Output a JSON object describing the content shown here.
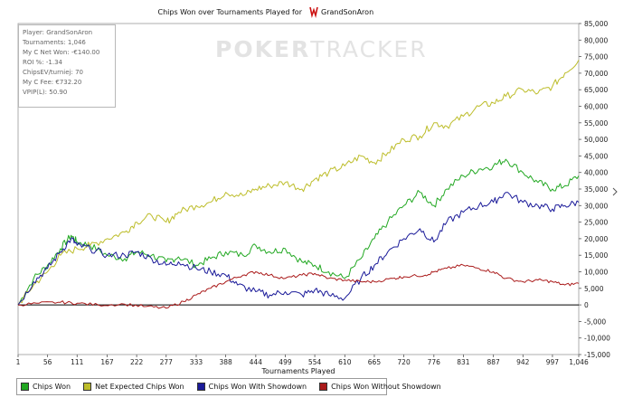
{
  "chart_data": {
    "type": "line",
    "title": "Chips Won over Tournaments Played for",
    "player_name": "GrandSonAron",
    "xlabel": "Tournaments Played",
    "ylabel": "",
    "x_ticks": [
      "1",
      "56",
      "111",
      "167",
      "222",
      "277",
      "333",
      "388",
      "444",
      "499",
      "554",
      "610",
      "665",
      "720",
      "776",
      "831",
      "887",
      "942",
      "997",
      "1,046"
    ],
    "y_ticks": [
      "85,000",
      "80,000",
      "75,000",
      "70,000",
      "65,000",
      "60,000",
      "55,000",
      "50,000",
      "45,000",
      "40,000",
      "35,000",
      "30,000",
      "25,000",
      "20,000",
      "15,000",
      "10,000",
      "5,000",
      "0",
      "-5,000",
      "-10,000",
      "-15,000"
    ],
    "xlim": [
      1,
      1046
    ],
    "ylim": [
      -15000,
      85000
    ],
    "legend_position": "bottom-left",
    "stats_box": [
      "Player: GrandSonAron",
      "Tournaments: 1,046",
      "My C Net Won: -€140.00",
      "ROI %: -1.34",
      "ChipsEV/turniej: 70",
      "My C Fee: €732.20",
      "VPIP(L): 50.90"
    ],
    "watermark": {
      "part1": "POKER",
      "part2": "TRACKER"
    },
    "series": [
      {
        "name": "Chips Won",
        "color": "#22a822",
        "x": [
          1,
          30,
          56,
          80,
          100,
          111,
          135,
          167,
          200,
          222,
          250,
          277,
          300,
          333,
          360,
          388,
          420,
          444,
          470,
          499,
          530,
          554,
          580,
          610,
          640,
          665,
          690,
          720,
          750,
          776,
          800,
          831,
          860,
          887,
          910,
          942,
          970,
          997,
          1020,
          1046
        ],
        "y": [
          0,
          8000,
          12000,
          17000,
          21000,
          19000,
          18000,
          15000,
          14000,
          16000,
          15000,
          13000,
          14500,
          12000,
          14000,
          16000,
          15000,
          18000,
          16000,
          17000,
          13000,
          12000,
          10000,
          8000,
          14000,
          20000,
          25000,
          30000,
          34000,
          30000,
          35000,
          39000,
          41000,
          42000,
          44000,
          40000,
          37000,
          35000,
          36000,
          39000
        ]
      },
      {
        "name": "Net Expected Chips Won",
        "color": "#bdbd2a",
        "x": [
          1,
          30,
          56,
          80,
          111,
          135,
          167,
          200,
          222,
          250,
          277,
          300,
          333,
          360,
          388,
          420,
          444,
          470,
          499,
          530,
          554,
          580,
          610,
          640,
          665,
          690,
          720,
          750,
          776,
          800,
          831,
          860,
          887,
          910,
          942,
          970,
          997,
          1020,
          1046
        ],
        "y": [
          0,
          6000,
          10000,
          15000,
          17000,
          18000,
          20000,
          22000,
          25000,
          27000,
          25000,
          28000,
          30000,
          31000,
          34000,
          33000,
          35000,
          36000,
          37000,
          35000,
          38000,
          40000,
          42000,
          45000,
          43000,
          46000,
          50000,
          51000,
          55000,
          54000,
          57000,
          60000,
          61000,
          63000,
          65000,
          64000,
          66000,
          70000,
          74000
        ]
      },
      {
        "name": "Chips Won With Showdown",
        "color": "#1a1a99",
        "x": [
          1,
          30,
          56,
          80,
          100,
          111,
          135,
          167,
          200,
          222,
          250,
          277,
          300,
          333,
          360,
          388,
          410,
          444,
          470,
          499,
          530,
          554,
          580,
          610,
          640,
          665,
          690,
          720,
          750,
          776,
          800,
          831,
          860,
          887,
          910,
          942,
          970,
          997,
          1020,
          1046
        ],
        "y": [
          0,
          7000,
          11000,
          16000,
          20000,
          18000,
          17000,
          15000,
          15000,
          16000,
          14000,
          12000,
          13000,
          11000,
          10000,
          9000,
          6000,
          4000,
          3000,
          4000,
          3000,
          4500,
          3000,
          2000,
          8000,
          12000,
          16000,
          20000,
          23000,
          19000,
          25000,
          28000,
          30000,
          31000,
          34000,
          31000,
          30000,
          29000,
          30000,
          31000
        ]
      },
      {
        "name": "Chips Won Without Showdown",
        "color": "#aa1a1a",
        "x": [
          1,
          40,
          80,
          111,
          150,
          200,
          240,
          277,
          310,
          333,
          360,
          388,
          420,
          444,
          470,
          499,
          530,
          554,
          580,
          610,
          640,
          665,
          700,
          720,
          760,
          776,
          800,
          831,
          860,
          887,
          910,
          942,
          970,
          997,
          1020,
          1046
        ],
        "y": [
          0,
          500,
          800,
          500,
          0,
          200,
          -500,
          -1000,
          1000,
          3000,
          5000,
          7000,
          9000,
          10000,
          9000,
          8000,
          9000,
          9500,
          8000,
          7500,
          7000,
          7000,
          8000,
          8500,
          9000,
          10000,
          11000,
          12000,
          11000,
          10000,
          8000,
          7000,
          7500,
          7000,
          6000,
          6500
        ]
      }
    ]
  }
}
